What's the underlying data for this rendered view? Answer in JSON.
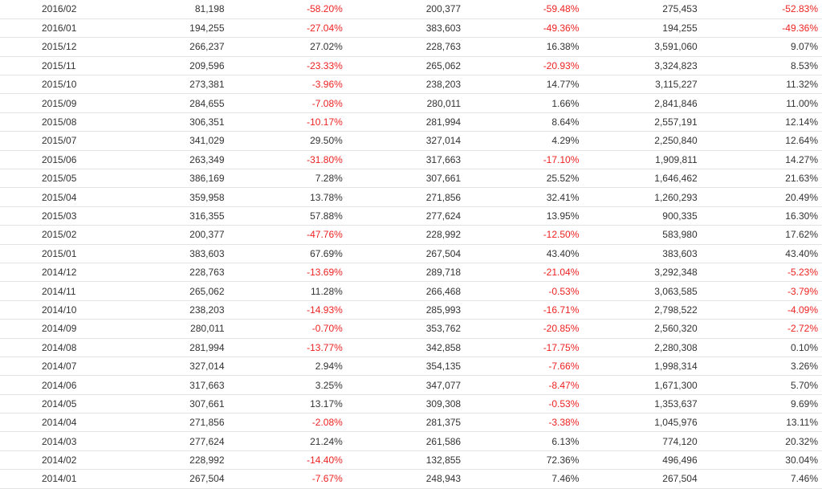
{
  "colors": {
    "negative": "#ee2222",
    "text": "#333333",
    "row_border": "#e3e3e3"
  },
  "table": {
    "rows": [
      [
        "2016/02",
        "81,198",
        "-58.20%",
        "200,377",
        "-59.48%",
        "275,453",
        "-52.83%"
      ],
      [
        "2016/01",
        "194,255",
        "-27.04%",
        "383,603",
        "-49.36%",
        "194,255",
        "-49.36%"
      ],
      [
        "2015/12",
        "266,237",
        "27.02%",
        "228,763",
        "16.38%",
        "3,591,060",
        "9.07%"
      ],
      [
        "2015/11",
        "209,596",
        "-23.33%",
        "265,062",
        "-20.93%",
        "3,324,823",
        "8.53%"
      ],
      [
        "2015/10",
        "273,381",
        "-3.96%",
        "238,203",
        "14.77%",
        "3,115,227",
        "11.32%"
      ],
      [
        "2015/09",
        "284,655",
        "-7.08%",
        "280,011",
        "1.66%",
        "2,841,846",
        "11.00%"
      ],
      [
        "2015/08",
        "306,351",
        "-10.17%",
        "281,994",
        "8.64%",
        "2,557,191",
        "12.14%"
      ],
      [
        "2015/07",
        "341,029",
        "29.50%",
        "327,014",
        "4.29%",
        "2,250,840",
        "12.64%"
      ],
      [
        "2015/06",
        "263,349",
        "-31.80%",
        "317,663",
        "-17.10%",
        "1,909,811",
        "14.27%"
      ],
      [
        "2015/05",
        "386,169",
        "7.28%",
        "307,661",
        "25.52%",
        "1,646,462",
        "21.63%"
      ],
      [
        "2015/04",
        "359,958",
        "13.78%",
        "271,856",
        "32.41%",
        "1,260,293",
        "20.49%"
      ],
      [
        "2015/03",
        "316,355",
        "57.88%",
        "277,624",
        "13.95%",
        "900,335",
        "16.30%"
      ],
      [
        "2015/02",
        "200,377",
        "-47.76%",
        "228,992",
        "-12.50%",
        "583,980",
        "17.62%"
      ],
      [
        "2015/01",
        "383,603",
        "67.69%",
        "267,504",
        "43.40%",
        "383,603",
        "43.40%"
      ],
      [
        "2014/12",
        "228,763",
        "-13.69%",
        "289,718",
        "-21.04%",
        "3,292,348",
        "-5.23%"
      ],
      [
        "2014/11",
        "265,062",
        "11.28%",
        "266,468",
        "-0.53%",
        "3,063,585",
        "-3.79%"
      ],
      [
        "2014/10",
        "238,203",
        "-14.93%",
        "285,993",
        "-16.71%",
        "2,798,522",
        "-4.09%"
      ],
      [
        "2014/09",
        "280,011",
        "-0.70%",
        "353,762",
        "-20.85%",
        "2,560,320",
        "-2.72%"
      ],
      [
        "2014/08",
        "281,994",
        "-13.77%",
        "342,858",
        "-17.75%",
        "2,280,308",
        "0.10%"
      ],
      [
        "2014/07",
        "327,014",
        "2.94%",
        "354,135",
        "-7.66%",
        "1,998,314",
        "3.26%"
      ],
      [
        "2014/06",
        "317,663",
        "3.25%",
        "347,077",
        "-8.47%",
        "1,671,300",
        "5.70%"
      ],
      [
        "2014/05",
        "307,661",
        "13.17%",
        "309,308",
        "-0.53%",
        "1,353,637",
        "9.69%"
      ],
      [
        "2014/04",
        "271,856",
        "-2.08%",
        "281,375",
        "-3.38%",
        "1,045,976",
        "13.11%"
      ],
      [
        "2014/03",
        "277,624",
        "21.24%",
        "261,586",
        "6.13%",
        "774,120",
        "20.32%"
      ],
      [
        "2014/02",
        "228,992",
        "-14.40%",
        "132,855",
        "72.36%",
        "496,496",
        "30.04%"
      ],
      [
        "2014/01",
        "267,504",
        "-7.67%",
        "248,943",
        "7.46%",
        "267,504",
        "7.46%"
      ]
    ]
  }
}
